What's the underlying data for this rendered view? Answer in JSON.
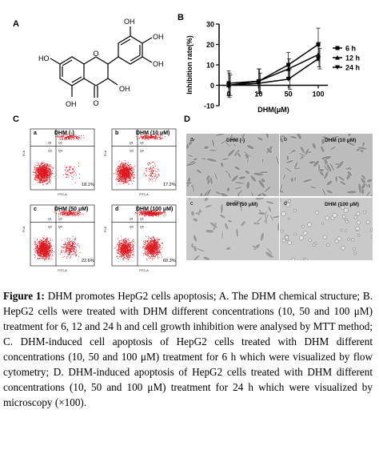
{
  "panels": {
    "a": "A",
    "b": "B",
    "c": "C",
    "d": "D"
  },
  "structure": {
    "labels": {
      "oh_top1": "OH",
      "oh_top2": "OH",
      "oh_right": "OH",
      "oh_left": "HO",
      "oh_bottom": "OH",
      "oh_side": "OH",
      "o_ring": "O",
      "o_keto": "O"
    }
  },
  "chart_data": {
    "type": "line",
    "ylabel": "Inhibition rate(%)",
    "xlabel": "DHM(μM)",
    "categories": [
      "0",
      "10",
      "50",
      "100"
    ],
    "yticks": [
      "-10",
      "0",
      "10",
      "20",
      "30"
    ],
    "ylim": [
      -10,
      30
    ],
    "series": [
      {
        "name": "6 h",
        "values": [
          1,
          2,
          10,
          20
        ],
        "errors": [
          6,
          6,
          6,
          8
        ]
      },
      {
        "name": "12 h",
        "values": [
          0,
          2,
          8,
          15
        ],
        "errors": [
          6,
          6,
          5,
          6
        ]
      },
      {
        "name": "24 h",
        "values": [
          0,
          1,
          3,
          13
        ],
        "errors": [
          5,
          5,
          5,
          5
        ]
      }
    ],
    "legend_position": "right"
  },
  "flow": {
    "axis_y": "PI-A",
    "axis_x": "FITC-A",
    "quadrants": [
      "Q1",
      "Q2",
      "Q3",
      "Q4"
    ],
    "panels": [
      {
        "sub": "a",
        "treat": "DHM (-)",
        "pct": "18.1%"
      },
      {
        "sub": "b",
        "treat": "DHM (10 μM)",
        "pct": "17.2%"
      },
      {
        "sub": "c",
        "treat": "DHM (50 μM)",
        "pct": "22.6%"
      },
      {
        "sub": "d",
        "treat": "DHM (100 μM)",
        "pct": "60.3%"
      }
    ]
  },
  "micro": {
    "panels": [
      {
        "sub": "a",
        "treat": "DHM (-)"
      },
      {
        "sub": "b",
        "treat": "DHM (10 μM)"
      },
      {
        "sub": "c",
        "treat": "DHM (50 μM)"
      },
      {
        "sub": "d",
        "treat": "DHM (100 μM)"
      }
    ]
  },
  "caption": {
    "label": "Figure 1:",
    "text": " DHM promotes HepG2 cells apoptosis; A. The DHM chemical structure; B. HepG2 cells were treated with DHM different concentrations (10, 50 and 100 μM) treatment for 6, 12 and 24 h and cell growth inhibition were analysed by MTT method; C. DHM-induced cell apoptosis of HepG2 cells treated with DHM different concentrations (10, 50 and 100 μM) treatment for 6 h which were visualized by flow cytometry; D. DHM-induced apoptosis of HepG2 cells treated with DHM different concentrations (10, 50 and 100 μM) treatment for 24 h which were visualized by microscopy (×100)."
  }
}
